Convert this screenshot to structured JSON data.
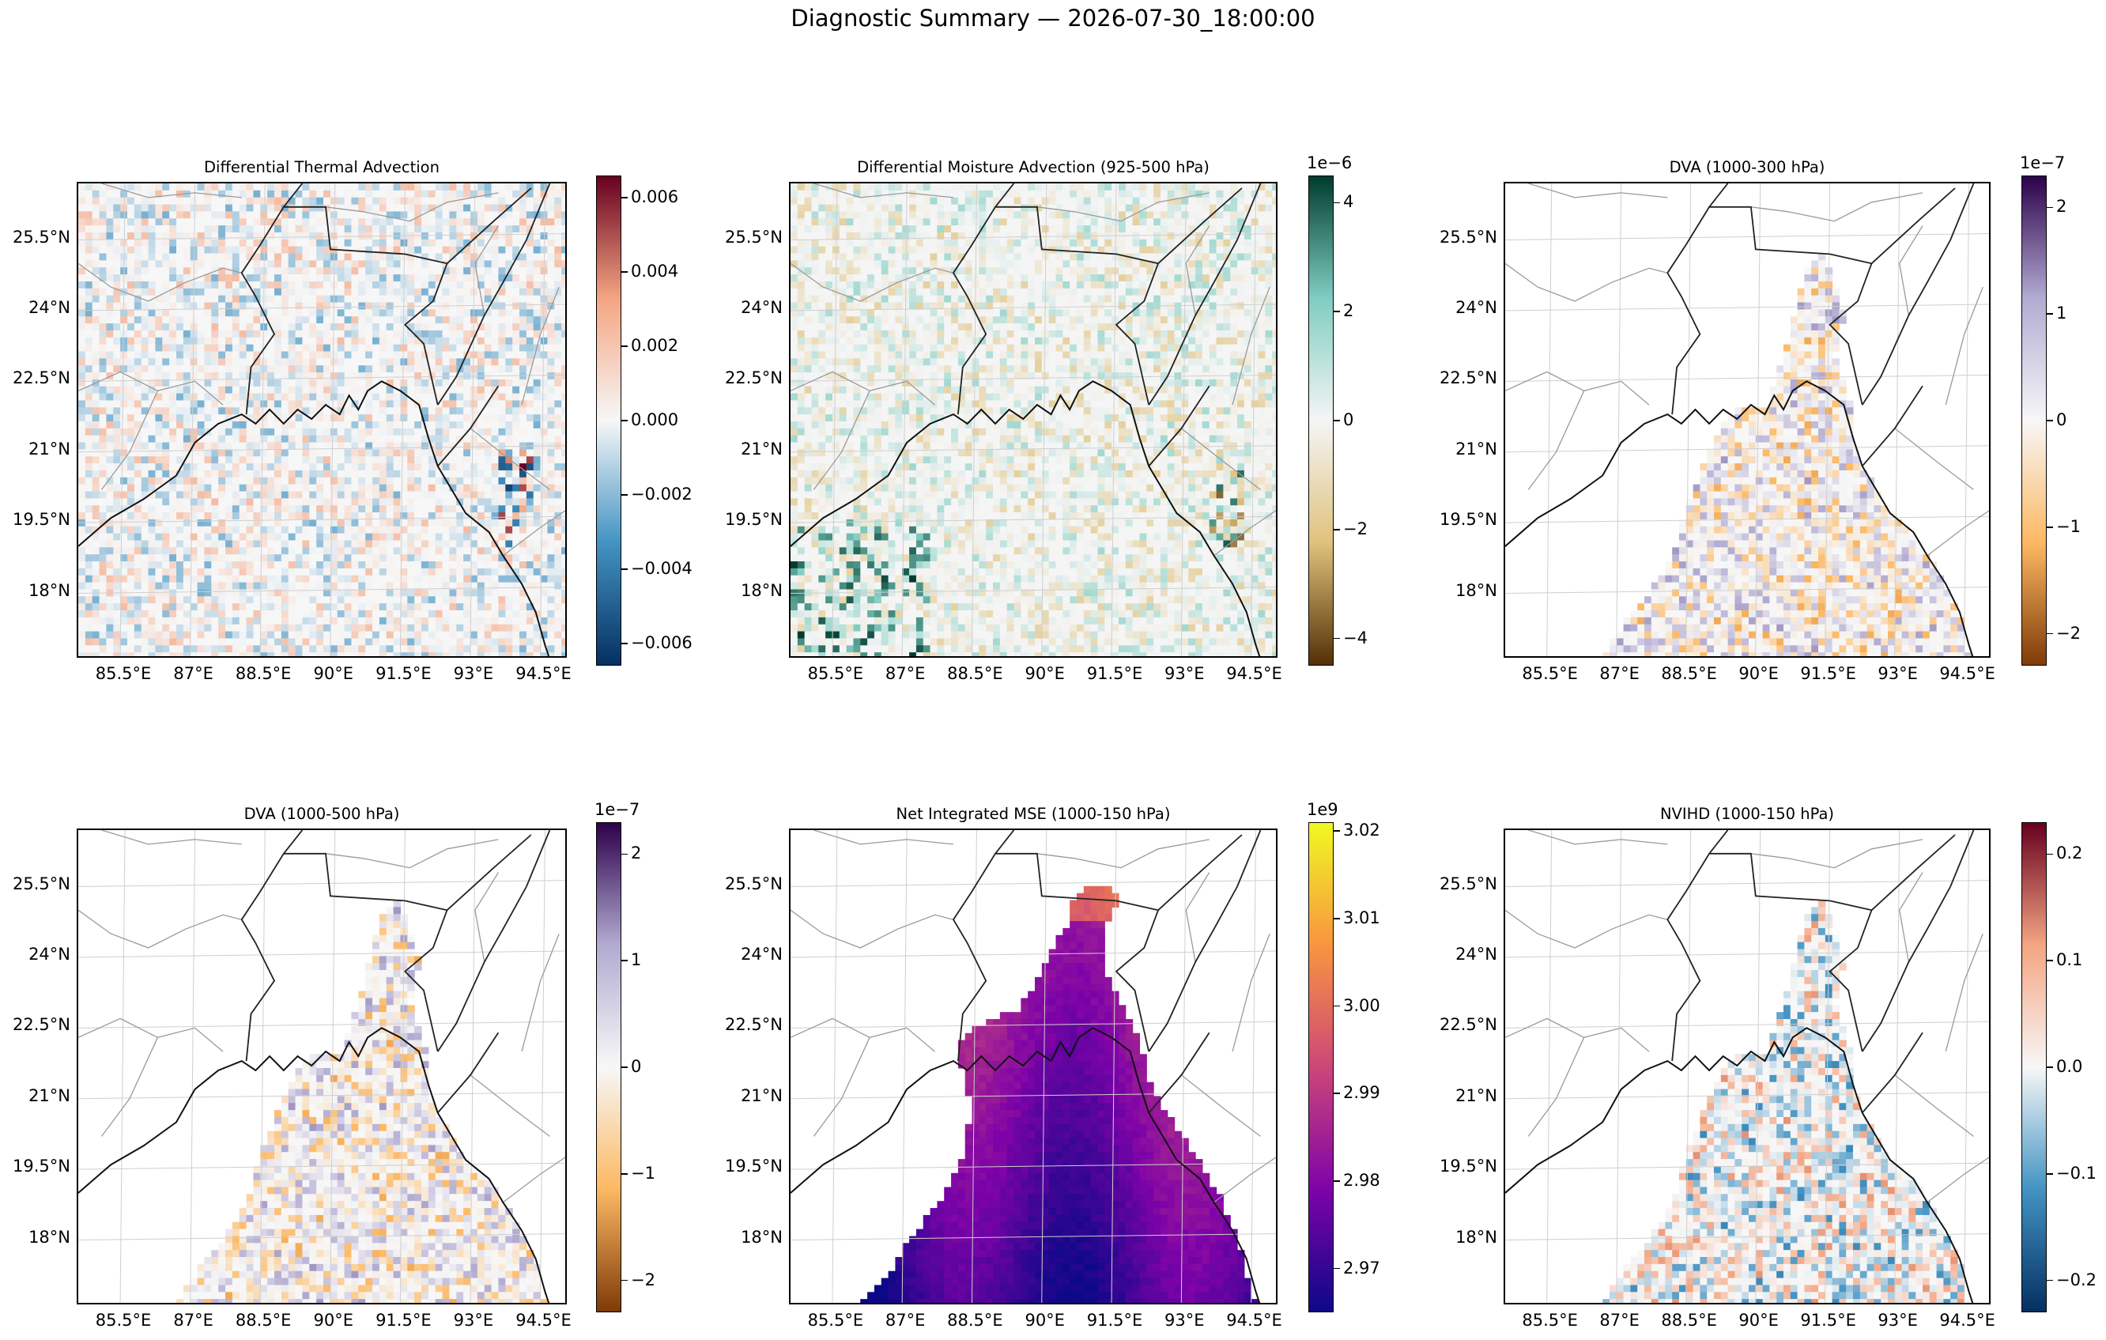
{
  "suptitle": "Diagnostic Summary — 2026-07-30_18:00:00",
  "lat_ticks": [
    "25.5°N",
    "24°N",
    "22.5°N",
    "21°N",
    "19.5°N",
    "18°N"
  ],
  "lon_ticks": [
    "85.5°E",
    "87°E",
    "88.5°E",
    "90°E",
    "91.5°E",
    "93°E",
    "94.5°E"
  ],
  "chart_data": [
    {
      "type": "heatmap",
      "title": "Differential Thermal Advection",
      "colormap": "RdBu_r",
      "colors": [
        "#053061",
        "#4393c3",
        "#f7f7f7",
        "#f4a582",
        "#67001f"
      ],
      "colorbar_range": [
        -0.0066,
        0.0066
      ],
      "colorbar_ticks": [
        "0.006",
        "0.004",
        "0.002",
        "0.000",
        "−0.002",
        "−0.004",
        "−0.006"
      ],
      "colorbar_tick_values": [
        0.006,
        0.004,
        0.002,
        0,
        -0.002,
        -0.004,
        -0.006
      ],
      "colorbar_exponent": "",
      "xlim": [
        84.5,
        95.0
      ],
      "ylim": [
        16.6,
        26.7
      ],
      "coverage": "full"
    },
    {
      "type": "heatmap",
      "title": "Differential Moisture Advection (925-500 hPa)",
      "colormap": "BrBG",
      "colors": [
        "#543005",
        "#dfc27d",
        "#f5f5f5",
        "#80cdc1",
        "#003c30"
      ],
      "colorbar_range": [
        -4.5,
        4.5
      ],
      "colorbar_ticks": [
        "4",
        "2",
        "0",
        "−2",
        "−4"
      ],
      "colorbar_tick_values": [
        4,
        2,
        0,
        -2,
        -4
      ],
      "colorbar_exponent": "1e−6",
      "xlim": [
        84.5,
        95.0
      ],
      "ylim": [
        16.6,
        26.7
      ],
      "coverage": "full"
    },
    {
      "type": "heatmap",
      "title": "DVA (1000-300 hPa)",
      "colormap": "PuOr",
      "colors": [
        "#7f3b08",
        "#fdb863",
        "#f7f7f7",
        "#b2abd2",
        "#2d004b"
      ],
      "colorbar_range": [
        -2.3,
        2.3
      ],
      "colorbar_ticks": [
        "2",
        "1",
        "0",
        "−1",
        "−2"
      ],
      "colorbar_tick_values": [
        2,
        1,
        0,
        -1,
        -2
      ],
      "colorbar_exponent": "1e−7",
      "xlim": [
        84.5,
        95.0
      ],
      "ylim": [
        16.6,
        26.7
      ],
      "coverage": "ocean"
    },
    {
      "type": "heatmap",
      "title": "DVA (1000-500 hPa)",
      "colormap": "PuOr",
      "colors": [
        "#7f3b08",
        "#fdb863",
        "#f7f7f7",
        "#b2abd2",
        "#2d004b"
      ],
      "colorbar_range": [
        -2.3,
        2.3
      ],
      "colorbar_ticks": [
        "2",
        "1",
        "0",
        "−1",
        "−2"
      ],
      "colorbar_tick_values": [
        2,
        1,
        0,
        -1,
        -2
      ],
      "colorbar_exponent": "1e−7",
      "xlim": [
        84.5,
        95.0
      ],
      "ylim": [
        16.6,
        26.7
      ],
      "coverage": "ocean"
    },
    {
      "type": "heatmap",
      "title": "Net Integrated MSE (1000-150 hPa)",
      "colormap": "plasma",
      "colors": [
        "#0d0887",
        "#7e03a8",
        "#cc4778",
        "#f89540",
        "#f0f921"
      ],
      "colorbar_range": [
        2.965,
        3.021
      ],
      "colorbar_ticks": [
        "3.02",
        "3.01",
        "3.00",
        "2.99",
        "2.98",
        "2.97"
      ],
      "colorbar_tick_values": [
        3.02,
        3.01,
        3.0,
        2.99,
        2.98,
        2.97
      ],
      "colorbar_exponent": "1e9",
      "xlim": [
        84.5,
        95.0
      ],
      "ylim": [
        16.6,
        26.7
      ],
      "coverage": "ocean-filled"
    },
    {
      "type": "heatmap",
      "title": "NVIHD (1000-150 hPa)",
      "colormap": "RdBu_r",
      "colors": [
        "#053061",
        "#4393c3",
        "#f7f7f7",
        "#f4a582",
        "#67001f"
      ],
      "colorbar_range": [
        -0.23,
        0.23
      ],
      "colorbar_ticks": [
        "0.2",
        "0.1",
        "0.0",
        "−0.1",
        "−0.2"
      ],
      "colorbar_tick_values": [
        0.2,
        0.1,
        0.0,
        -0.1,
        -0.2
      ],
      "colorbar_exponent": "",
      "xlim": [
        84.5,
        95.0
      ],
      "ylim": [
        16.6,
        26.7
      ],
      "coverage": "ocean"
    }
  ]
}
